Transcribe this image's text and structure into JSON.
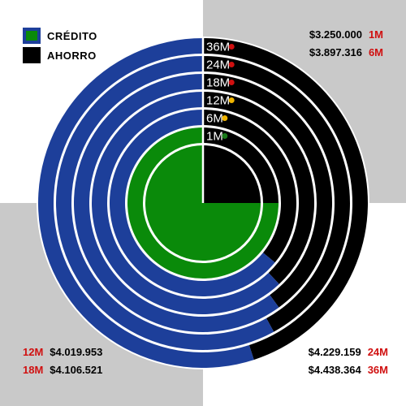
{
  "legend": {
    "credito_label": "CRÉDITO",
    "ahorro_label": "AHORRO"
  },
  "colors": {
    "credito": "#1d3f9a",
    "credito_inner": "#0a8a0a",
    "ahorro": "#000000",
    "separator": "#ffffff"
  },
  "corners": {
    "top_right": [
      {
        "value": "$3.250.000",
        "term": "1M"
      },
      {
        "value": "$3.897.316",
        "term": "6M"
      }
    ],
    "bottom_left": [
      {
        "term": "12M",
        "value": "$4.019.953"
      },
      {
        "term": "18M",
        "value": "$4.106.521"
      }
    ],
    "bottom_right": [
      {
        "value": "$4.229.159",
        "term": "24M"
      },
      {
        "value": "$4.438.364",
        "term": "36M"
      }
    ]
  },
  "chart_data": {
    "type": "pie",
    "description_rings_inner_to_outer": true,
    "rings": [
      {
        "label": "1M",
        "dot_color": "#1a7a1a",
        "ahorro_fraction": 0.25,
        "credito_fraction": 0.75,
        "credito_color": "#0a8a0a"
      },
      {
        "label": "6M",
        "dot_color": "#f0b400",
        "ahorro_fraction": 0.36,
        "credito_fraction": 0.64,
        "credito_color": "#1d3f9a"
      },
      {
        "label": "12M",
        "dot_color": "#f0b400",
        "ahorro_fraction": 0.38,
        "credito_fraction": 0.62,
        "credito_color": "#1d3f9a"
      },
      {
        "label": "18M",
        "dot_color": "#d01010",
        "ahorro_fraction": 0.4,
        "credito_fraction": 0.6,
        "credito_color": "#1d3f9a"
      },
      {
        "label": "24M",
        "dot_color": "#d01010",
        "ahorro_fraction": 0.42,
        "credito_fraction": 0.58,
        "credito_color": "#1d3f9a"
      },
      {
        "label": "36M",
        "dot_color": "#d01010",
        "ahorro_fraction": 0.45,
        "credito_fraction": 0.55,
        "credito_color": "#1d3f9a"
      }
    ],
    "inner_fill": {
      "ahorro_fraction": 0.25,
      "credito_fraction": 0.75,
      "credito_color": "#0a8a0a"
    },
    "center_ahorro_start_deg": 0
  }
}
